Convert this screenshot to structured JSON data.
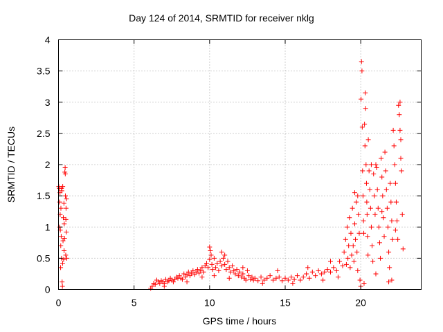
{
  "chart_data": {
    "type": "scatter",
    "title": "Day 124 of 2014, SRMTID for receiver nklg",
    "xlabel": "GPS time / hours",
    "ylabel": "SRMTID / TECUs",
    "xlim": [
      0,
      24
    ],
    "ylim": [
      0,
      4
    ],
    "xticks": [
      0,
      5,
      10,
      15,
      20
    ],
    "yticks": [
      0,
      0.5,
      1,
      1.5,
      2,
      2.5,
      3,
      3.5,
      4
    ],
    "xtick_labels": [
      "0",
      "5",
      "10",
      "15",
      "20"
    ],
    "ytick_labels": [
      "0",
      "0.5",
      "1",
      "1.5",
      "2",
      "2.5",
      "3",
      "3.5",
      "4"
    ],
    "grid": true,
    "marker": "+",
    "color": "#ff0000",
    "series": [
      {
        "name": "SRMTID",
        "points": [
          [
            0.02,
            1.65
          ],
          [
            0.05,
            1.62
          ],
          [
            0.08,
            1.4
          ],
          [
            0.1,
            1.55
          ],
          [
            0.12,
            0.95
          ],
          [
            0.14,
            0.35
          ],
          [
            0.16,
            1.3
          ],
          [
            0.18,
            0.85
          ],
          [
            0.2,
            0.5
          ],
          [
            0.22,
            1.58
          ],
          [
            0.24,
            0.12
          ],
          [
            0.26,
            0.05
          ],
          [
            0.28,
            1.65
          ],
          [
            0.3,
            0.78
          ],
          [
            0.32,
            1.15
          ],
          [
            0.34,
            0.48
          ],
          [
            0.36,
            1.38
          ],
          [
            0.38,
            1.05
          ],
          [
            0.4,
            0.82
          ],
          [
            0.42,
            1.88
          ],
          [
            0.44,
            1.95
          ],
          [
            0.46,
            1.5
          ],
          [
            0.48,
            0.55
          ],
          [
            0.5,
            1.3
          ],
          [
            0.52,
            0.92
          ],
          [
            0.55,
            0.5
          ],
          [
            0.08,
            1.0
          ],
          [
            0.11,
            1.2
          ],
          [
            0.27,
            0.42
          ],
          [
            0.37,
            0.62
          ],
          [
            0.45,
            1.85
          ],
          [
            0.49,
            1.12
          ],
          [
            0.53,
            1.45
          ],
          [
            0.2,
            1.62
          ],
          [
            0.15,
            0.7
          ],
          [
            6.1,
            0.02
          ],
          [
            6.2,
            0.05
          ],
          [
            6.3,
            0.1
          ],
          [
            6.4,
            0.08
          ],
          [
            6.5,
            0.15
          ],
          [
            6.6,
            0.12
          ],
          [
            6.7,
            0.1
          ],
          [
            6.8,
            0.14
          ],
          [
            6.9,
            0.12
          ],
          [
            7.0,
            0.1
          ],
          [
            7.1,
            0.16
          ],
          [
            7.2,
            0.12
          ],
          [
            7.3,
            0.14
          ],
          [
            7.4,
            0.18
          ],
          [
            7.5,
            0.15
          ],
          [
            7.6,
            0.12
          ],
          [
            7.7,
            0.16
          ],
          [
            7.8,
            0.2
          ],
          [
            7.9,
            0.18
          ],
          [
            8.0,
            0.22
          ],
          [
            8.1,
            0.18
          ],
          [
            8.2,
            0.16
          ],
          [
            8.3,
            0.25
          ],
          [
            8.4,
            0.2
          ],
          [
            8.5,
            0.24
          ],
          [
            8.6,
            0.28
          ],
          [
            8.7,
            0.22
          ],
          [
            8.8,
            0.26
          ],
          [
            8.9,
            0.3
          ],
          [
            9.0,
            0.24
          ],
          [
            9.1,
            0.28
          ],
          [
            9.2,
            0.32
          ],
          [
            9.3,
            0.26
          ],
          [
            9.4,
            0.3
          ],
          [
            9.5,
            0.35
          ],
          [
            9.6,
            0.28
          ],
          [
            9.7,
            0.38
          ],
          [
            9.8,
            0.42
          ],
          [
            9.9,
            0.35
          ],
          [
            10.0,
            0.48
          ],
          [
            10.05,
            0.62
          ],
          [
            10.1,
            0.55
          ],
          [
            10.15,
            0.4
          ],
          [
            10.2,
            0.32
          ],
          [
            10.3,
            0.5
          ],
          [
            10.4,
            0.35
          ],
          [
            10.5,
            0.42
          ],
          [
            10.6,
            0.3
          ],
          [
            10.7,
            0.45
          ],
          [
            10.8,
            0.38
          ],
          [
            10.9,
            0.5
          ],
          [
            11.0,
            0.4
          ],
          [
            11.1,
            0.32
          ],
          [
            11.2,
            0.45
          ],
          [
            11.3,
            0.35
          ],
          [
            11.4,
            0.28
          ],
          [
            11.5,
            0.38
          ],
          [
            11.6,
            0.3
          ],
          [
            11.7,
            0.25
          ],
          [
            11.8,
            0.32
          ],
          [
            11.9,
            0.22
          ],
          [
            12.0,
            0.28
          ],
          [
            12.1,
            0.2
          ],
          [
            12.2,
            0.25
          ],
          [
            12.3,
            0.18
          ],
          [
            12.4,
            0.15
          ],
          [
            12.5,
            0.3
          ],
          [
            12.6,
            0.22
          ],
          [
            12.7,
            0.16
          ],
          [
            12.8,
            0.2
          ],
          [
            12.9,
            0.15
          ],
          [
            13.0,
            0.18
          ],
          [
            13.2,
            0.14
          ],
          [
            13.4,
            0.2
          ],
          [
            13.6,
            0.15
          ],
          [
            13.8,
            0.18
          ],
          [
            14.0,
            0.22
          ],
          [
            14.2,
            0.15
          ],
          [
            14.4,
            0.18
          ],
          [
            14.6,
            0.2
          ],
          [
            14.8,
            0.14
          ],
          [
            15.0,
            0.18
          ],
          [
            15.2,
            0.15
          ],
          [
            15.4,
            0.2
          ],
          [
            15.6,
            0.16
          ],
          [
            15.8,
            0.22
          ],
          [
            16.0,
            0.15
          ],
          [
            16.2,
            0.2
          ],
          [
            16.4,
            0.25
          ],
          [
            16.6,
            0.18
          ],
          [
            16.8,
            0.28
          ],
          [
            17.0,
            0.22
          ],
          [
            17.2,
            0.3
          ],
          [
            17.4,
            0.25
          ],
          [
            17.6,
            0.28
          ],
          [
            17.8,
            0.32
          ],
          [
            18.0,
            0.28
          ],
          [
            18.2,
            0.35
          ],
          [
            18.4,
            0.3
          ],
          [
            18.6,
            0.45
          ],
          [
            18.8,
            0.38
          ],
          [
            7.0,
            0.05
          ],
          [
            8.5,
            0.12
          ],
          [
            9.5,
            0.2
          ],
          [
            10.0,
            0.68
          ],
          [
            10.3,
            0.22
          ],
          [
            10.8,
            0.6
          ],
          [
            11.0,
            0.55
          ],
          [
            11.3,
            0.18
          ],
          [
            12.2,
            0.35
          ],
          [
            13.5,
            0.1
          ],
          [
            14.5,
            0.3
          ],
          [
            15.5,
            0.1
          ],
          [
            16.5,
            0.35
          ],
          [
            17.5,
            0.15
          ],
          [
            18.0,
            0.45
          ],
          [
            18.5,
            0.2
          ],
          [
            18.9,
            0.6
          ],
          [
            19.0,
            0.8
          ],
          [
            19.05,
            0.4
          ],
          [
            19.1,
            1.0
          ],
          [
            19.15,
            0.5
          ],
          [
            19.2,
            0.7
          ],
          [
            19.25,
            1.15
          ],
          [
            19.3,
            0.35
          ],
          [
            19.35,
            0.9
          ],
          [
            19.4,
            0.55
          ],
          [
            19.45,
            1.3
          ],
          [
            19.5,
            0.7
          ],
          [
            19.55,
            0.45
          ],
          [
            19.6,
            1.05
          ],
          [
            19.65,
            0.8
          ],
          [
            19.7,
            1.4
          ],
          [
            19.75,
            0.6
          ],
          [
            19.8,
            0.3
          ],
          [
            19.85,
            1.2
          ],
          [
            19.9,
            0.9
          ],
          [
            19.95,
            0.15
          ],
          [
            20.0,
            0.05
          ],
          [
            20.02,
            3.05
          ],
          [
            20.05,
            3.65
          ],
          [
            20.08,
            3.5
          ],
          [
            20.1,
            2.6
          ],
          [
            20.12,
            1.9
          ],
          [
            20.15,
            1.5
          ],
          [
            20.18,
            1.1
          ],
          [
            20.2,
            0.9
          ],
          [
            20.22,
            0.1
          ],
          [
            20.25,
            2.65
          ],
          [
            20.28,
            2.3
          ],
          [
            20.3,
            3.15
          ],
          [
            20.32,
            2.9
          ],
          [
            20.35,
            2.0
          ],
          [
            20.38,
            1.7
          ],
          [
            20.4,
            1.4
          ],
          [
            20.42,
            1.2
          ],
          [
            20.45,
            0.85
          ],
          [
            20.48,
            0.55
          ],
          [
            20.5,
            2.4
          ],
          [
            20.55,
            1.9
          ],
          [
            20.6,
            1.6
          ],
          [
            20.65,
            1.3
          ],
          [
            20.7,
            1.0
          ],
          [
            20.75,
            0.7
          ],
          [
            20.8,
            0.45
          ],
          [
            20.85,
            1.85
          ],
          [
            20.9,
            1.5
          ],
          [
            20.95,
            1.2
          ],
          [
            21.0,
            0.25
          ],
          [
            21.05,
            1.95
          ],
          [
            21.1,
            1.6
          ],
          [
            21.15,
            1.3
          ],
          [
            21.2,
            1.0
          ],
          [
            21.25,
            0.75
          ],
          [
            21.3,
            0.5
          ],
          [
            21.35,
            2.1
          ],
          [
            21.4,
            1.8
          ],
          [
            21.45,
            1.5
          ],
          [
            21.5,
            1.15
          ],
          [
            21.55,
            0.85
          ],
          [
            21.6,
            2.2
          ],
          [
            21.65,
            1.9
          ],
          [
            21.7,
            1.6
          ],
          [
            21.75,
            1.3
          ],
          [
            21.8,
            1.0
          ],
          [
            21.85,
            0.6
          ],
          [
            21.9,
            0.35
          ],
          [
            21.95,
            1.7
          ],
          [
            22.0,
            1.4
          ],
          [
            22.05,
            1.1
          ],
          [
            22.1,
            0.8
          ],
          [
            22.15,
            2.55
          ],
          [
            22.2,
            2.3
          ],
          [
            22.25,
            2.0
          ],
          [
            22.3,
            1.7
          ],
          [
            22.35,
            1.4
          ],
          [
            22.4,
            1.1
          ],
          [
            22.45,
            0.8
          ],
          [
            22.5,
            2.95
          ],
          [
            22.55,
            2.8
          ],
          [
            22.6,
            2.55
          ],
          [
            22.65,
            2.4
          ],
          [
            22.7,
            1.9
          ],
          [
            22.75,
            1.2
          ],
          [
            22.8,
            0.65
          ],
          [
            22.05,
            0.15
          ],
          [
            21.85,
            0.12
          ],
          [
            22.3,
            0.95
          ],
          [
            21.4,
            1.25
          ],
          [
            21.0,
            2.0
          ],
          [
            20.7,
            2.0
          ],
          [
            19.8,
            1.5
          ],
          [
            19.6,
            1.55
          ],
          [
            22.6,
            3.0
          ],
          [
            22.65,
            2.1
          ]
        ]
      }
    ]
  }
}
